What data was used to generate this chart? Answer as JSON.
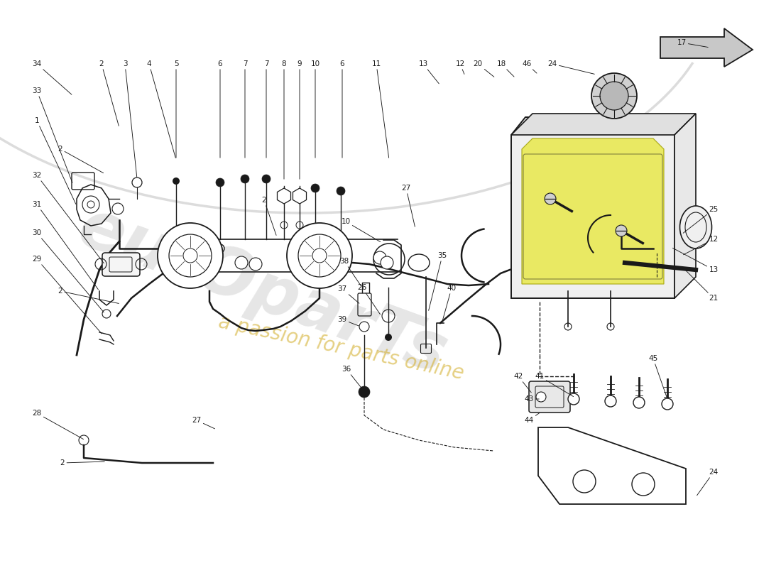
{
  "bg_color": "#ffffff",
  "lc": "#1a1a1a",
  "hc": "#e8e840",
  "wm1": "eurOparTs",
  "wm2": "a passion for parts online",
  "fs": 7.5
}
